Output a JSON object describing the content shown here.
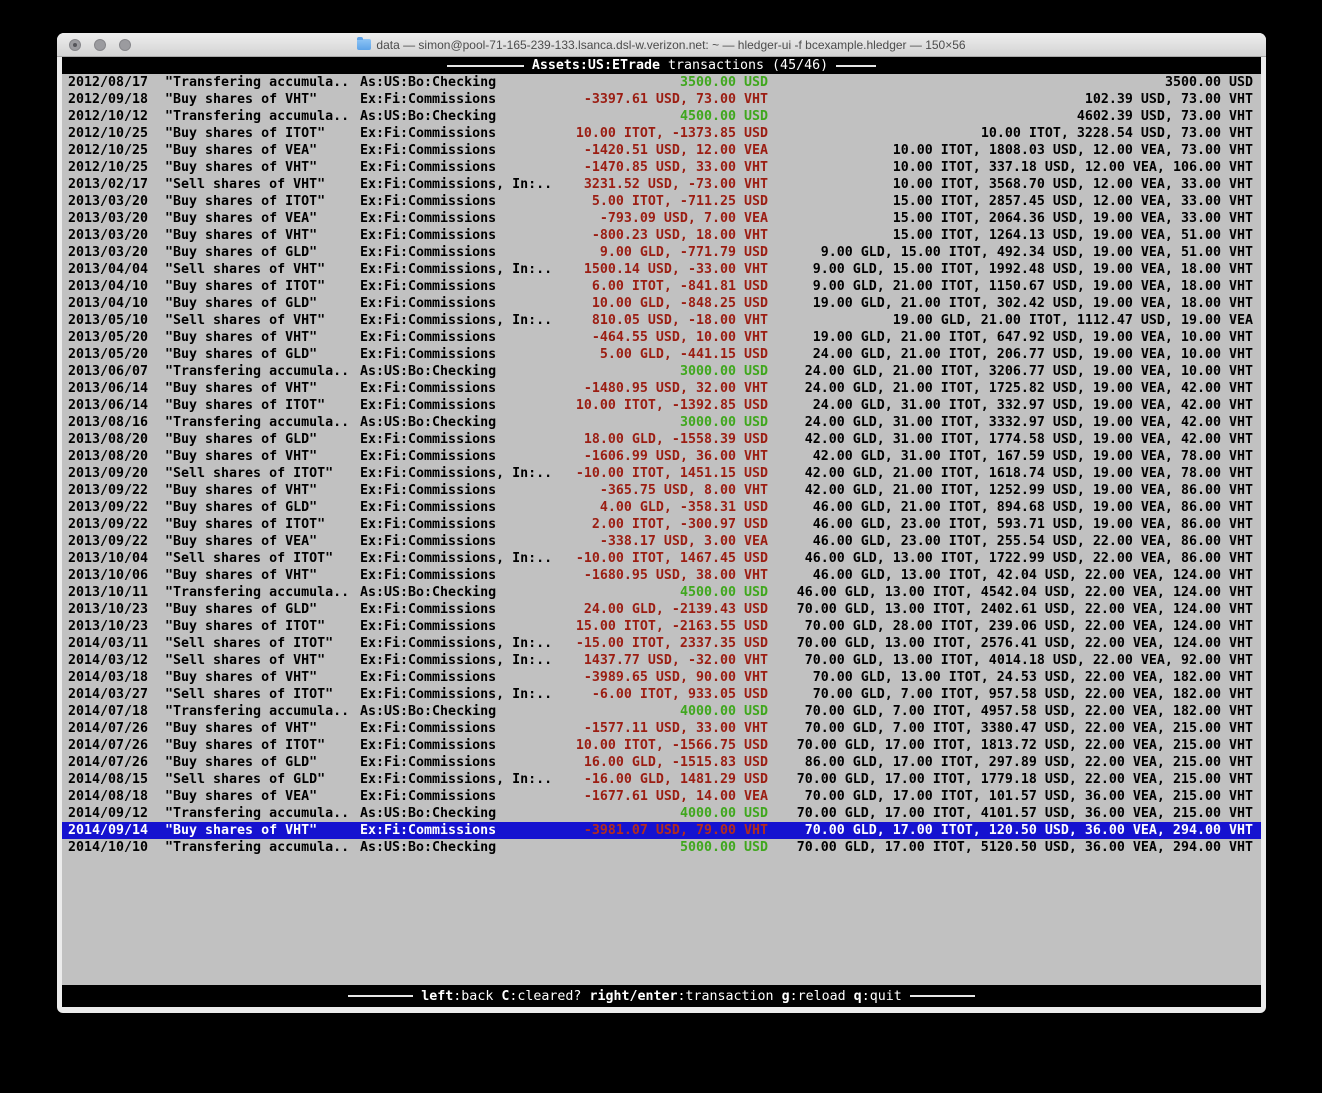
{
  "window": {
    "title": "data — simon@pool-71-165-239-133.lsanca.dsl-w.verizon.net: ~ — hledger-ui -f bcexample.hledger — 150×56"
  },
  "header": {
    "account": "Assets:US:ETrade",
    "subtitle": "transactions (45/46)"
  },
  "colors": {
    "terminal_bg": "#c1c1c1",
    "positive_amount": "#3fa71d",
    "negative_amount": "#9b1d12",
    "selection_bg": "#1512d0",
    "bar_bg": "#000000",
    "bar_fg": "#ffffff"
  },
  "table": {
    "rows": [
      {
        "date": "2012/08/17",
        "desc": "\"Transfering accumula..",
        "account": "As:US:Bo:Checking",
        "amount": "3500.00 USD",
        "amount_type": "positive",
        "balance": "3500.00 USD",
        "selected": false
      },
      {
        "date": "2012/09/18",
        "desc": "\"Buy shares of VHT\"",
        "account": "Ex:Fi:Commissions",
        "amount": "-3397.61 USD, 73.00 VHT",
        "amount_type": "negative",
        "balance": "102.39 USD, 73.00 VHT",
        "selected": false
      },
      {
        "date": "2012/10/12",
        "desc": "\"Transfering accumula..",
        "account": "As:US:Bo:Checking",
        "amount": "4500.00 USD",
        "amount_type": "positive",
        "balance": "4602.39 USD, 73.00 VHT",
        "selected": false
      },
      {
        "date": "2012/10/25",
        "desc": "\"Buy shares of ITOT\"",
        "account": "Ex:Fi:Commissions",
        "amount": "10.00 ITOT, -1373.85 USD",
        "amount_type": "negative",
        "balance": "10.00 ITOT, 3228.54 USD, 73.00 VHT",
        "selected": false
      },
      {
        "date": "2012/10/25",
        "desc": "\"Buy shares of VEA\"",
        "account": "Ex:Fi:Commissions",
        "amount": "-1420.51 USD, 12.00 VEA",
        "amount_type": "negative",
        "balance": "10.00 ITOT, 1808.03 USD, 12.00 VEA, 73.00 VHT",
        "selected": false
      },
      {
        "date": "2012/10/25",
        "desc": "\"Buy shares of VHT\"",
        "account": "Ex:Fi:Commissions",
        "amount": "-1470.85 USD, 33.00 VHT",
        "amount_type": "negative",
        "balance": "10.00 ITOT, 337.18 USD, 12.00 VEA, 106.00 VHT",
        "selected": false
      },
      {
        "date": "2013/02/17",
        "desc": "\"Sell shares of VHT\"",
        "account": "Ex:Fi:Commissions, In:..",
        "amount": "3231.52 USD, -73.00 VHT",
        "amount_type": "negative",
        "balance": "10.00 ITOT, 3568.70 USD, 12.00 VEA, 33.00 VHT",
        "selected": false
      },
      {
        "date": "2013/03/20",
        "desc": "\"Buy shares of ITOT\"",
        "account": "Ex:Fi:Commissions",
        "amount": "5.00 ITOT, -711.25 USD",
        "amount_type": "negative",
        "balance": "15.00 ITOT, 2857.45 USD, 12.00 VEA, 33.00 VHT",
        "selected": false
      },
      {
        "date": "2013/03/20",
        "desc": "\"Buy shares of VEA\"",
        "account": "Ex:Fi:Commissions",
        "amount": "-793.09 USD, 7.00 VEA",
        "amount_type": "negative",
        "balance": "15.00 ITOT, 2064.36 USD, 19.00 VEA, 33.00 VHT",
        "selected": false
      },
      {
        "date": "2013/03/20",
        "desc": "\"Buy shares of VHT\"",
        "account": "Ex:Fi:Commissions",
        "amount": "-800.23 USD, 18.00 VHT",
        "amount_type": "negative",
        "balance": "15.00 ITOT, 1264.13 USD, 19.00 VEA, 51.00 VHT",
        "selected": false
      },
      {
        "date": "2013/03/20",
        "desc": "\"Buy shares of GLD\"",
        "account": "Ex:Fi:Commissions",
        "amount": "9.00 GLD, -771.79 USD",
        "amount_type": "negative",
        "balance": "9.00 GLD, 15.00 ITOT, 492.34 USD, 19.00 VEA, 51.00 VHT",
        "selected": false
      },
      {
        "date": "2013/04/04",
        "desc": "\"Sell shares of VHT\"",
        "account": "Ex:Fi:Commissions, In:..",
        "amount": "1500.14 USD, -33.00 VHT",
        "amount_type": "negative",
        "balance": "9.00 GLD, 15.00 ITOT, 1992.48 USD, 19.00 VEA, 18.00 VHT",
        "selected": false
      },
      {
        "date": "2013/04/10",
        "desc": "\"Buy shares of ITOT\"",
        "account": "Ex:Fi:Commissions",
        "amount": "6.00 ITOT, -841.81 USD",
        "amount_type": "negative",
        "balance": "9.00 GLD, 21.00 ITOT, 1150.67 USD, 19.00 VEA, 18.00 VHT",
        "selected": false
      },
      {
        "date": "2013/04/10",
        "desc": "\"Buy shares of GLD\"",
        "account": "Ex:Fi:Commissions",
        "amount": "10.00 GLD, -848.25 USD",
        "amount_type": "negative",
        "balance": "19.00 GLD, 21.00 ITOT, 302.42 USD, 19.00 VEA, 18.00 VHT",
        "selected": false
      },
      {
        "date": "2013/05/10",
        "desc": "\"Sell shares of VHT\"",
        "account": "Ex:Fi:Commissions, In:..",
        "amount": "810.05 USD, -18.00 VHT",
        "amount_type": "negative",
        "balance": "19.00 GLD, 21.00 ITOT, 1112.47 USD, 19.00 VEA",
        "selected": false
      },
      {
        "date": "2013/05/20",
        "desc": "\"Buy shares of VHT\"",
        "account": "Ex:Fi:Commissions",
        "amount": "-464.55 USD, 10.00 VHT",
        "amount_type": "negative",
        "balance": "19.00 GLD, 21.00 ITOT, 647.92 USD, 19.00 VEA, 10.00 VHT",
        "selected": false
      },
      {
        "date": "2013/05/20",
        "desc": "\"Buy shares of GLD\"",
        "account": "Ex:Fi:Commissions",
        "amount": "5.00 GLD, -441.15 USD",
        "amount_type": "negative",
        "balance": "24.00 GLD, 21.00 ITOT, 206.77 USD, 19.00 VEA, 10.00 VHT",
        "selected": false
      },
      {
        "date": "2013/06/07",
        "desc": "\"Transfering accumula..",
        "account": "As:US:Bo:Checking",
        "amount": "3000.00 USD",
        "amount_type": "positive",
        "balance": "24.00 GLD, 21.00 ITOT, 3206.77 USD, 19.00 VEA, 10.00 VHT",
        "selected": false
      },
      {
        "date": "2013/06/14",
        "desc": "\"Buy shares of VHT\"",
        "account": "Ex:Fi:Commissions",
        "amount": "-1480.95 USD, 32.00 VHT",
        "amount_type": "negative",
        "balance": "24.00 GLD, 21.00 ITOT, 1725.82 USD, 19.00 VEA, 42.00 VHT",
        "selected": false
      },
      {
        "date": "2013/06/14",
        "desc": "\"Buy shares of ITOT\"",
        "account": "Ex:Fi:Commissions",
        "amount": "10.00 ITOT, -1392.85 USD",
        "amount_type": "negative",
        "balance": "24.00 GLD, 31.00 ITOT, 332.97 USD, 19.00 VEA, 42.00 VHT",
        "selected": false
      },
      {
        "date": "2013/08/16",
        "desc": "\"Transfering accumula..",
        "account": "As:US:Bo:Checking",
        "amount": "3000.00 USD",
        "amount_type": "positive",
        "balance": "24.00 GLD, 31.00 ITOT, 3332.97 USD, 19.00 VEA, 42.00 VHT",
        "selected": false
      },
      {
        "date": "2013/08/20",
        "desc": "\"Buy shares of GLD\"",
        "account": "Ex:Fi:Commissions",
        "amount": "18.00 GLD, -1558.39 USD",
        "amount_type": "negative",
        "balance": "42.00 GLD, 31.00 ITOT, 1774.58 USD, 19.00 VEA, 42.00 VHT",
        "selected": false
      },
      {
        "date": "2013/08/20",
        "desc": "\"Buy shares of VHT\"",
        "account": "Ex:Fi:Commissions",
        "amount": "-1606.99 USD, 36.00 VHT",
        "amount_type": "negative",
        "balance": "42.00 GLD, 31.00 ITOT, 167.59 USD, 19.00 VEA, 78.00 VHT",
        "selected": false
      },
      {
        "date": "2013/09/20",
        "desc": "\"Sell shares of ITOT\"",
        "account": "Ex:Fi:Commissions, In:..",
        "amount": "-10.00 ITOT, 1451.15 USD",
        "amount_type": "negative",
        "balance": "42.00 GLD, 21.00 ITOT, 1618.74 USD, 19.00 VEA, 78.00 VHT",
        "selected": false
      },
      {
        "date": "2013/09/22",
        "desc": "\"Buy shares of VHT\"",
        "account": "Ex:Fi:Commissions",
        "amount": "-365.75 USD, 8.00 VHT",
        "amount_type": "negative",
        "balance": "42.00 GLD, 21.00 ITOT, 1252.99 USD, 19.00 VEA, 86.00 VHT",
        "selected": false
      },
      {
        "date": "2013/09/22",
        "desc": "\"Buy shares of GLD\"",
        "account": "Ex:Fi:Commissions",
        "amount": "4.00 GLD, -358.31 USD",
        "amount_type": "negative",
        "balance": "46.00 GLD, 21.00 ITOT, 894.68 USD, 19.00 VEA, 86.00 VHT",
        "selected": false
      },
      {
        "date": "2013/09/22",
        "desc": "\"Buy shares of ITOT\"",
        "account": "Ex:Fi:Commissions",
        "amount": "2.00 ITOT, -300.97 USD",
        "amount_type": "negative",
        "balance": "46.00 GLD, 23.00 ITOT, 593.71 USD, 19.00 VEA, 86.00 VHT",
        "selected": false
      },
      {
        "date": "2013/09/22",
        "desc": "\"Buy shares of VEA\"",
        "account": "Ex:Fi:Commissions",
        "amount": "-338.17 USD, 3.00 VEA",
        "amount_type": "negative",
        "balance": "46.00 GLD, 23.00 ITOT, 255.54 USD, 22.00 VEA, 86.00 VHT",
        "selected": false
      },
      {
        "date": "2013/10/04",
        "desc": "\"Sell shares of ITOT\"",
        "account": "Ex:Fi:Commissions, In:..",
        "amount": "-10.00 ITOT, 1467.45 USD",
        "amount_type": "negative",
        "balance": "46.00 GLD, 13.00 ITOT, 1722.99 USD, 22.00 VEA, 86.00 VHT",
        "selected": false
      },
      {
        "date": "2013/10/06",
        "desc": "\"Buy shares of VHT\"",
        "account": "Ex:Fi:Commissions",
        "amount": "-1680.95 USD, 38.00 VHT",
        "amount_type": "negative",
        "balance": "46.00 GLD, 13.00 ITOT, 42.04 USD, 22.00 VEA, 124.00 VHT",
        "selected": false
      },
      {
        "date": "2013/10/11",
        "desc": "\"Transfering accumula..",
        "account": "As:US:Bo:Checking",
        "amount": "4500.00 USD",
        "amount_type": "positive",
        "balance": "46.00 GLD, 13.00 ITOT, 4542.04 USD, 22.00 VEA, 124.00 VHT",
        "selected": false
      },
      {
        "date": "2013/10/23",
        "desc": "\"Buy shares of GLD\"",
        "account": "Ex:Fi:Commissions",
        "amount": "24.00 GLD, -2139.43 USD",
        "amount_type": "negative",
        "balance": "70.00 GLD, 13.00 ITOT, 2402.61 USD, 22.00 VEA, 124.00 VHT",
        "selected": false
      },
      {
        "date": "2013/10/23",
        "desc": "\"Buy shares of ITOT\"",
        "account": "Ex:Fi:Commissions",
        "amount": "15.00 ITOT, -2163.55 USD",
        "amount_type": "negative",
        "balance": "70.00 GLD, 28.00 ITOT, 239.06 USD, 22.00 VEA, 124.00 VHT",
        "selected": false
      },
      {
        "date": "2014/03/11",
        "desc": "\"Sell shares of ITOT\"",
        "account": "Ex:Fi:Commissions, In:..",
        "amount": "-15.00 ITOT, 2337.35 USD",
        "amount_type": "negative",
        "balance": "70.00 GLD, 13.00 ITOT, 2576.41 USD, 22.00 VEA, 124.00 VHT",
        "selected": false
      },
      {
        "date": "2014/03/12",
        "desc": "\"Sell shares of VHT\"",
        "account": "Ex:Fi:Commissions, In:..",
        "amount": "1437.77 USD, -32.00 VHT",
        "amount_type": "negative",
        "balance": "70.00 GLD, 13.00 ITOT, 4014.18 USD, 22.00 VEA, 92.00 VHT",
        "selected": false
      },
      {
        "date": "2014/03/18",
        "desc": "\"Buy shares of VHT\"",
        "account": "Ex:Fi:Commissions",
        "amount": "-3989.65 USD, 90.00 VHT",
        "amount_type": "negative",
        "balance": "70.00 GLD, 13.00 ITOT, 24.53 USD, 22.00 VEA, 182.00 VHT",
        "selected": false
      },
      {
        "date": "2014/03/27",
        "desc": "\"Sell shares of ITOT\"",
        "account": "Ex:Fi:Commissions, In:..",
        "amount": "-6.00 ITOT, 933.05 USD",
        "amount_type": "negative",
        "balance": "70.00 GLD, 7.00 ITOT, 957.58 USD, 22.00 VEA, 182.00 VHT",
        "selected": false
      },
      {
        "date": "2014/07/18",
        "desc": "\"Transfering accumula..",
        "account": "As:US:Bo:Checking",
        "amount": "4000.00 USD",
        "amount_type": "positive",
        "balance": "70.00 GLD, 7.00 ITOT, 4957.58 USD, 22.00 VEA, 182.00 VHT",
        "selected": false
      },
      {
        "date": "2014/07/26",
        "desc": "\"Buy shares of VHT\"",
        "account": "Ex:Fi:Commissions",
        "amount": "-1577.11 USD, 33.00 VHT",
        "amount_type": "negative",
        "balance": "70.00 GLD, 7.00 ITOT, 3380.47 USD, 22.00 VEA, 215.00 VHT",
        "selected": false
      },
      {
        "date": "2014/07/26",
        "desc": "\"Buy shares of ITOT\"",
        "account": "Ex:Fi:Commissions",
        "amount": "10.00 ITOT, -1566.75 USD",
        "amount_type": "negative",
        "balance": "70.00 GLD, 17.00 ITOT, 1813.72 USD, 22.00 VEA, 215.00 VHT",
        "selected": false
      },
      {
        "date": "2014/07/26",
        "desc": "\"Buy shares of GLD\"",
        "account": "Ex:Fi:Commissions",
        "amount": "16.00 GLD, -1515.83 USD",
        "amount_type": "negative",
        "balance": "86.00 GLD, 17.00 ITOT, 297.89 USD, 22.00 VEA, 215.00 VHT",
        "selected": false
      },
      {
        "date": "2014/08/15",
        "desc": "\"Sell shares of GLD\"",
        "account": "Ex:Fi:Commissions, In:..",
        "amount": "-16.00 GLD, 1481.29 USD",
        "amount_type": "negative",
        "balance": "70.00 GLD, 17.00 ITOT, 1779.18 USD, 22.00 VEA, 215.00 VHT",
        "selected": false
      },
      {
        "date": "2014/08/18",
        "desc": "\"Buy shares of VEA\"",
        "account": "Ex:Fi:Commissions",
        "amount": "-1677.61 USD, 14.00 VEA",
        "amount_type": "negative",
        "balance": "70.00 GLD, 17.00 ITOT, 101.57 USD, 36.00 VEA, 215.00 VHT",
        "selected": false
      },
      {
        "date": "2014/09/12",
        "desc": "\"Transfering accumula..",
        "account": "As:US:Bo:Checking",
        "amount": "4000.00 USD",
        "amount_type": "positive",
        "balance": "70.00 GLD, 17.00 ITOT, 4101.57 USD, 36.00 VEA, 215.00 VHT",
        "selected": false
      },
      {
        "date": "2014/09/14",
        "desc": "\"Buy shares of VHT\"",
        "account": "Ex:Fi:Commissions",
        "amount": "-3981.07 USD, 79.00 VHT",
        "amount_type": "negative",
        "balance": "70.00 GLD, 17.00 ITOT, 120.50 USD, 36.00 VEA, 294.00 VHT",
        "selected": true
      },
      {
        "date": "2014/10/10",
        "desc": "\"Transfering accumula..",
        "account": "As:US:Bo:Checking",
        "amount": "5000.00 USD",
        "amount_type": "positive",
        "balance": "70.00 GLD, 17.00 ITOT, 5120.50 USD, 36.00 VEA, 294.00 VHT",
        "selected": false
      }
    ]
  },
  "footer": {
    "keys": [
      {
        "key": "left",
        "action": ":back"
      },
      {
        "key": "C",
        "action": ":cleared?"
      },
      {
        "key": "right/enter",
        "action": ":transaction"
      },
      {
        "key": "g",
        "action": ":reload"
      },
      {
        "key": "q",
        "action": ":quit"
      }
    ]
  }
}
